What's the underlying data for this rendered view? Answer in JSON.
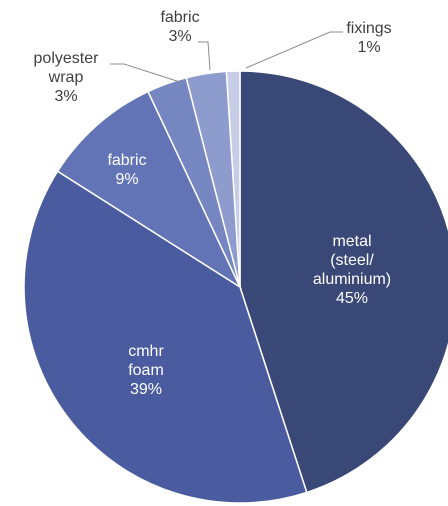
{
  "chart_data": {
    "type": "pie",
    "title": "",
    "slices": [
      {
        "lines": [
          "metal",
          "(steel/",
          "aluminium)"
        ],
        "value": 45,
        "value_label": "45%",
        "color": "#394876"
      },
      {
        "lines": [
          "cmhr",
          "foam"
        ],
        "value": 39,
        "value_label": "39%",
        "color": "#4a5c9f"
      },
      {
        "lines": [
          "fabric"
        ],
        "value": 9,
        "value_label": "9%",
        "color": "#6274b5"
      },
      {
        "lines": [
          "polyester",
          "wrap"
        ],
        "value": 3,
        "value_label": "3%",
        "color": "#7686c0"
      },
      {
        "lines": [
          "fabric"
        ],
        "value": 3,
        "value_label": "3%",
        "color": "#8e9bcd"
      },
      {
        "lines": [
          "fixings"
        ],
        "value": 1,
        "value_label": "1%",
        "color": "#c7cde6"
      }
    ],
    "start_angle_deg": 0,
    "direction": "clockwise",
    "legend": "none",
    "label_placement": [
      "inside",
      "inside",
      "inside",
      "outside",
      "outside",
      "outside"
    ]
  }
}
